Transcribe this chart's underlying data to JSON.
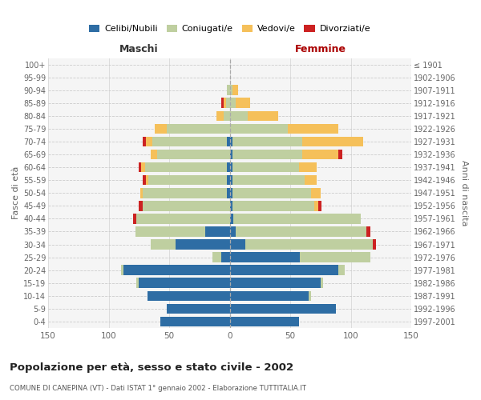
{
  "age_groups": [
    "0-4",
    "5-9",
    "10-14",
    "15-19",
    "20-24",
    "25-29",
    "30-34",
    "35-39",
    "40-44",
    "45-49",
    "50-54",
    "55-59",
    "60-64",
    "65-69",
    "70-74",
    "75-79",
    "80-84",
    "85-89",
    "90-94",
    "95-99",
    "100+"
  ],
  "birth_years": [
    "1997-2001",
    "1992-1996",
    "1987-1991",
    "1982-1986",
    "1977-1981",
    "1972-1976",
    "1967-1971",
    "1962-1966",
    "1957-1961",
    "1952-1956",
    "1947-1951",
    "1942-1946",
    "1937-1941",
    "1932-1936",
    "1927-1931",
    "1922-1926",
    "1917-1921",
    "1912-1916",
    "1907-1911",
    "1902-1906",
    "≤ 1901"
  ],
  "males": {
    "celibe": [
      57,
      52,
      68,
      75,
      88,
      7,
      45,
      20,
      0,
      0,
      2,
      2,
      2,
      0,
      2,
      0,
      0,
      0,
      0,
      0,
      0
    ],
    "coniugato": [
      0,
      0,
      0,
      2,
      2,
      7,
      20,
      58,
      77,
      72,
      70,
      65,
      68,
      60,
      62,
      52,
      5,
      3,
      2,
      0,
      0
    ],
    "vedovo": [
      0,
      0,
      0,
      0,
      0,
      0,
      0,
      0,
      0,
      0,
      2,
      2,
      3,
      5,
      5,
      10,
      6,
      2,
      0,
      0,
      0
    ],
    "divorziato": [
      0,
      0,
      0,
      0,
      0,
      0,
      0,
      0,
      3,
      3,
      0,
      3,
      2,
      0,
      3,
      0,
      0,
      2,
      0,
      0,
      0
    ]
  },
  "females": {
    "nubile": [
      57,
      88,
      65,
      75,
      90,
      58,
      13,
      5,
      3,
      2,
      2,
      2,
      2,
      2,
      2,
      0,
      0,
      0,
      0,
      0,
      0
    ],
    "coniugata": [
      0,
      0,
      2,
      2,
      5,
      58,
      105,
      108,
      105,
      68,
      65,
      60,
      55,
      58,
      58,
      48,
      15,
      5,
      2,
      0,
      0
    ],
    "vedova": [
      0,
      0,
      0,
      0,
      0,
      0,
      0,
      0,
      0,
      3,
      8,
      10,
      15,
      30,
      50,
      42,
      25,
      12,
      5,
      0,
      0
    ],
    "divorziata": [
      0,
      0,
      0,
      0,
      0,
      0,
      3,
      3,
      0,
      3,
      0,
      0,
      0,
      3,
      0,
      0,
      0,
      0,
      0,
      0,
      0
    ]
  },
  "colors": {
    "celibe": "#2E6DA4",
    "coniugato": "#BFCFA0",
    "vedovo": "#F5C05A",
    "divorziato": "#CC2222"
  },
  "title": "Popolazione per età, sesso e stato civile - 2002",
  "subtitle": "COMUNE DI CANEPINA (VT) - Dati ISTAT 1° gennaio 2002 - Elaborazione TUTTITALIA.IT",
  "xlabel_left": "Maschi",
  "xlabel_right": "Femmine",
  "ylabel_left": "Fasce di età",
  "ylabel_right": "Anni di nascita",
  "xlim": 150,
  "bg_color": "#f5f5f5",
  "grid_color": "#dddddd"
}
